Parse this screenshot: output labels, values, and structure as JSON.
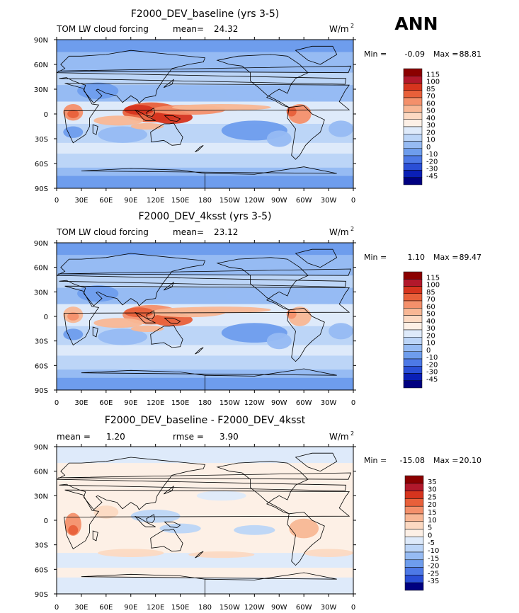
{
  "season": "ANN",
  "units_label": "W/m",
  "units_exp": "2",
  "panels": [
    {
      "title": "F2000_DEV_baseline (yrs 3-5)",
      "left_label": "TOM LW cloud forcing",
      "stat_label": "mean=",
      "stat_value": "24.32",
      "stat2_label": "",
      "stat2_value": "",
      "min_label": "Min =",
      "min_value": "-0.09",
      "max_label": "Max =",
      "max_value": "88.81"
    },
    {
      "title": "F2000_DEV_4ksst (yrs 3-5)",
      "left_label": "TOM LW cloud forcing",
      "stat_label": "mean=",
      "stat_value": "23.12",
      "stat2_label": "",
      "stat2_value": "",
      "min_label": "Min =",
      "min_value": "1.10",
      "max_label": "Max =",
      "max_value": "89.47"
    },
    {
      "title": "F2000_DEV_baseline - F2000_DEV_4ksst",
      "left_label": "",
      "stat_label": "mean =",
      "stat_value": "1.20",
      "stat2_label": "rmse =",
      "stat2_value": "3.90",
      "min_label": "Min =",
      "min_value": "-15.08",
      "max_label": "Max =",
      "max_value": "20.10"
    }
  ],
  "chart_data": [
    {
      "type": "heatmap",
      "title": "F2000_DEV_baseline (yrs 3-5)",
      "field": "TOM LW cloud forcing",
      "units": "W/m2",
      "xticks": [
        "0",
        "30E",
        "60E",
        "90E",
        "120E",
        "150E",
        "180",
        "150W",
        "120W",
        "90W",
        "60W",
        "30W",
        "0"
      ],
      "yticks": [
        "90N",
        "60N",
        "30N",
        "0",
        "30S",
        "60S",
        "90S"
      ],
      "xlim": [
        0,
        360
      ],
      "ylim": [
        -90,
        90
      ],
      "colorbar_levels": [
        "115",
        "100",
        "85",
        "70",
        "60",
        "50",
        "40",
        "30",
        "20",
        "10",
        "0",
        "-10",
        "-20",
        "-30",
        "-45"
      ]
    },
    {
      "type": "heatmap",
      "title": "F2000_DEV_4ksst (yrs 3-5)",
      "field": "TOM LW cloud forcing",
      "units": "W/m2",
      "xticks": [
        "0",
        "30E",
        "60E",
        "90E",
        "120E",
        "150E",
        "180",
        "150W",
        "120W",
        "90W",
        "60W",
        "30W",
        "0"
      ],
      "yticks": [
        "90N",
        "60N",
        "30N",
        "0",
        "30S",
        "60S",
        "90S"
      ],
      "xlim": [
        0,
        360
      ],
      "ylim": [
        -90,
        90
      ],
      "colorbar_levels": [
        "115",
        "100",
        "85",
        "70",
        "60",
        "50",
        "40",
        "30",
        "20",
        "10",
        "0",
        "-10",
        "-20",
        "-30",
        "-45"
      ]
    },
    {
      "type": "heatmap",
      "title": "F2000_DEV_baseline - F2000_DEV_4ksst",
      "field": "difference",
      "units": "W/m2",
      "xticks": [
        "0",
        "30E",
        "60E",
        "90E",
        "120E",
        "150E",
        "180",
        "150W",
        "120W",
        "90W",
        "60W",
        "30W",
        "0"
      ],
      "yticks": [
        "90N",
        "60N",
        "30N",
        "0",
        "30S",
        "60S",
        "90S"
      ],
      "xlim": [
        0,
        360
      ],
      "ylim": [
        -90,
        90
      ],
      "colorbar_levels": [
        "35",
        "30",
        "25",
        "20",
        "15",
        "10",
        "5",
        "0",
        "-5",
        "-10",
        "-15",
        "-20",
        "-25",
        "-35"
      ]
    }
  ],
  "colors": {
    "full": [
      "#8b0000",
      "#b2182b",
      "#d6341e",
      "#e8603a",
      "#f4906b",
      "#f8b795",
      "#fcd9c2",
      "#fdf0e6",
      "#deeafa",
      "#bcd5f7",
      "#96bbf3",
      "#6e9ded",
      "#4d79e6",
      "#2a4fd6",
      "#0a1fb6",
      "#000080"
    ],
    "diff": [
      "#8b0000",
      "#b2182b",
      "#d6341e",
      "#e8603a",
      "#f4906b",
      "#f8b795",
      "#fcd9c2",
      "#fdf0e6",
      "#deeafa",
      "#bcd5f7",
      "#96bbf3",
      "#6e9ded",
      "#4d79e6",
      "#2a4fd6",
      "#000080"
    ]
  }
}
